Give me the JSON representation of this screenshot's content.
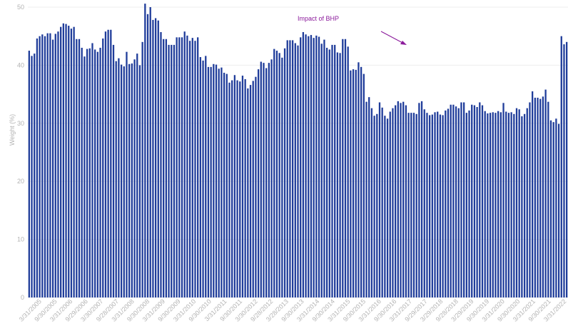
{
  "chart_data": {
    "type": "bar",
    "title": "",
    "xlabel": "",
    "ylabel": "Weight (%)",
    "ylim": [
      0,
      50
    ],
    "yticks": [
      "0",
      "10",
      "20",
      "30",
      "40",
      "50"
    ],
    "grid": true,
    "legend": "none",
    "colors": {
      "bar": "#1f3c9a",
      "grid": "#eeeeee",
      "annotation": "#8b1a9b"
    },
    "x_tick_labels": [
      "3/31/2005",
      "9/30/2005",
      "3/31/2006",
      "9/29/2006",
      "3/30/2007",
      "9/28/2007",
      "3/31/2008",
      "9/30/2008",
      "3/31/2009",
      "9/30/2009",
      "3/31/2010",
      "9/30/2010",
      "3/31/2011",
      "9/30/2011",
      "3/30/2012",
      "9/28/2012",
      "3/28/2013",
      "9/30/2013",
      "3/31/2014",
      "9/30/2014",
      "3/31/2015",
      "9/30/2015",
      "3/31/2016",
      "9/30/2016",
      "3/31/2017",
      "9/29/2017",
      "3/29/2018",
      "9/28/2018",
      "3/29/2019",
      "9/30/2019",
      "3/31/2020",
      "9/30/2020",
      "3/31/2021",
      "9/30/2021",
      "3/31/2022"
    ],
    "values": [
      42.5,
      41.6,
      42.0,
      44.6,
      45.0,
      45.3,
      45.0,
      45.5,
      45.5,
      44.4,
      45.4,
      45.8,
      46.6,
      47.2,
      47.1,
      46.8,
      46.3,
      46.6,
      44.5,
      44.5,
      43.0,
      41.5,
      42.8,
      42.9,
      43.8,
      42.7,
      42.3,
      43.0,
      44.6,
      45.8,
      46.1,
      46.1,
      43.5,
      40.7,
      41.2,
      40.1,
      39.8,
      42.3,
      40.2,
      40.3,
      41.0,
      42.0,
      40.0,
      44.0,
      50.6,
      48.8,
      50.0,
      47.8,
      48.1,
      47.7,
      45.7,
      44.5,
      44.5,
      43.5,
      43.5,
      43.5,
      44.8,
      44.8,
      44.8,
      45.8,
      45.1,
      44.2,
      44.7,
      44.2,
      44.8,
      41.4,
      40.8,
      41.6,
      39.7,
      39.7,
      40.2,
      40.1,
      39.4,
      39.6,
      38.7,
      38.5,
      37.0,
      37.4,
      38.3,
      37.4,
      37.2,
      38.2,
      37.6,
      36.0,
      36.6,
      37.3,
      38.0,
      39.3,
      40.6,
      40.4,
      39.5,
      40.4,
      41.0,
      42.8,
      42.5,
      42.1,
      41.3,
      42.9,
      44.3,
      44.3,
      44.3,
      43.8,
      43.4,
      44.8,
      45.7,
      45.3,
      45.0,
      45.2,
      44.7,
      45.1,
      44.9,
      43.7,
      44.4,
      43.0,
      42.7,
      43.5,
      43.5,
      42.2,
      42.1,
      44.5,
      44.5,
      43.2,
      39.1,
      39.3,
      39.2,
      40.5,
      39.7,
      38.5,
      33.7,
      34.5,
      32.6,
      31.3,
      31.6,
      33.6,
      32.7,
      31.3,
      30.8,
      32.0,
      32.6,
      33.1,
      33.8,
      33.5,
      33.7,
      33.1,
      31.8,
      31.8,
      31.8,
      31.6,
      33.5,
      33.8,
      32.4,
      31.8,
      31.4,
      31.5,
      31.9,
      32.0,
      31.5,
      31.4,
      32.2,
      32.5,
      33.2,
      33.2,
      32.9,
      32.6,
      33.6,
      33.6,
      31.8,
      32.2,
      33.2,
      33.1,
      32.8,
      33.6,
      33.1,
      32.1,
      31.7,
      31.8,
      31.9,
      31.8,
      32.1,
      31.9,
      33.5,
      32.0,
      31.8,
      31.9,
      31.6,
      32.6,
      32.4,
      31.2,
      31.6,
      32.6,
      33.6,
      35.5,
      34.4,
      34.4,
      34.2,
      34.6,
      35.8,
      33.7,
      30.5,
      30.2,
      30.8,
      29.9,
      45.0,
      43.6,
      44.0
    ],
    "annotations": [
      {
        "text": "Impact of BHP",
        "arrow": true
      }
    ]
  }
}
